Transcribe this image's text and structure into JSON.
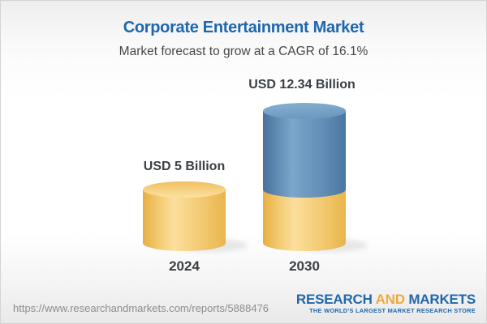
{
  "header": {
    "title": "Corporate Entertainment Market",
    "subtitle": "Market forecast to grow at a CAGR of 16.1%"
  },
  "chart_data": {
    "type": "bar",
    "variant": "3d-cylinder",
    "title": "Corporate Entertainment Market",
    "subtitle": "Market forecast to grow at a CAGR of 16.1%",
    "cagr_percent": 16.1,
    "unit": "USD Billion",
    "categories": [
      "2024",
      "2030"
    ],
    "values": [
      5,
      12.34
    ],
    "value_labels": [
      "USD 5 Billion",
      "USD 12.34 Billion"
    ],
    "base_segment_value": 5,
    "legend": "none",
    "axes": "none",
    "colors": {
      "base_fill_gold": "#f6cf7d",
      "growth_fill_blue": "#6a96bd",
      "title_blue": "#1d67ad",
      "label_dark": "#3b4045"
    }
  },
  "footer": {
    "url": "https://www.researchandmarkets.com/reports/5888476",
    "logo": {
      "part1": "RESEARCH",
      "part2": " AND ",
      "part3": "MARKETS",
      "tagline": "THE WORLD'S LARGEST MARKET RESEARCH STORE"
    }
  }
}
